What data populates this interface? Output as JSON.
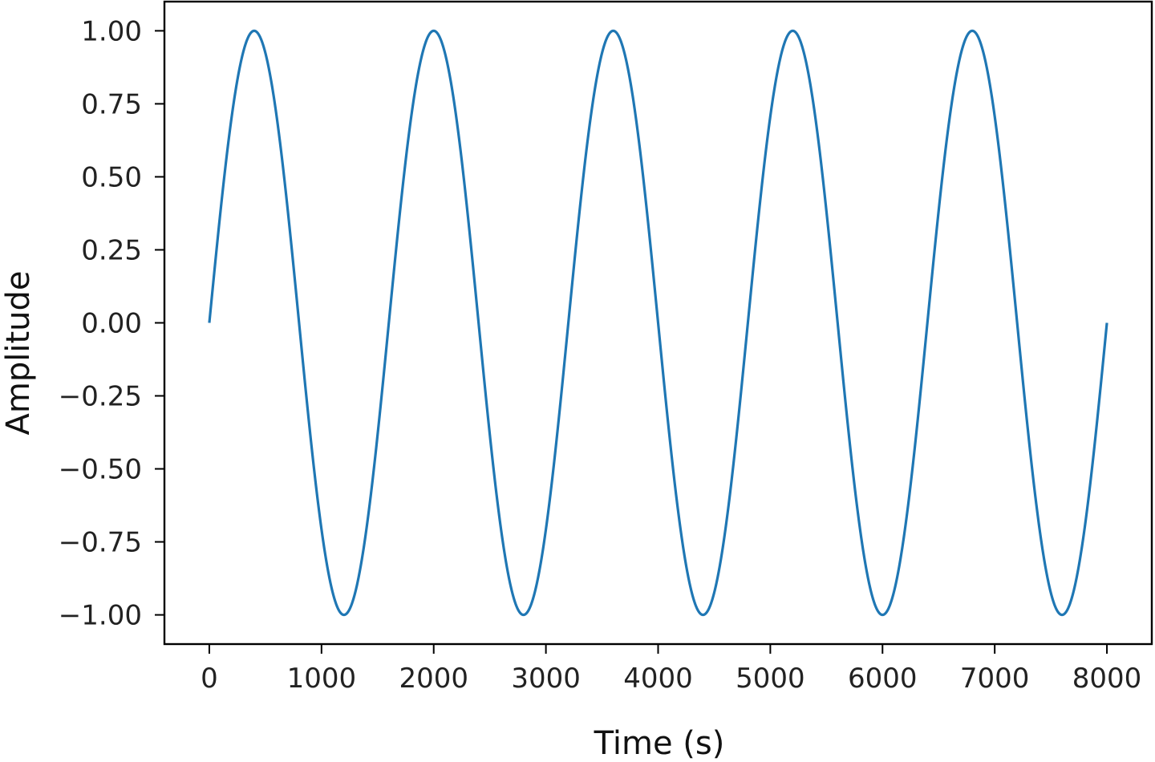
{
  "chart_data": {
    "type": "line",
    "title": "",
    "xlabel": "Time (s)",
    "ylabel": "Amplitude",
    "xlim": [
      -400,
      8400
    ],
    "ylim": [
      -1.1,
      1.1
    ],
    "x_ticks": [
      0,
      1000,
      2000,
      3000,
      4000,
      5000,
      6000,
      7000,
      8000
    ],
    "x_tick_labels": [
      "0",
      "1000",
      "2000",
      "3000",
      "4000",
      "5000",
      "6000",
      "7000",
      "8000"
    ],
    "y_ticks": [
      1.0,
      0.75,
      0.5,
      0.25,
      0.0,
      -0.25,
      -0.5,
      -0.75,
      -1.0
    ],
    "y_tick_labels": [
      "1.00",
      "0.75",
      "0.50",
      "0.25",
      "0.00",
      "−0.25",
      "−0.50",
      "−0.75",
      "−1.00"
    ],
    "grid": false,
    "legend": false,
    "series": [
      {
        "color": "#1f77b4",
        "function": "sine",
        "amplitude": 1.0,
        "period": 1600,
        "x_start": 0,
        "x_end": 8000,
        "x": [
          0,
          400,
          800,
          1200,
          1600,
          2000,
          2400,
          2800,
          3200,
          3600,
          4000,
          4400,
          4800,
          5200,
          5600,
          6000,
          6400,
          6800,
          7200,
          7600,
          8000
        ],
        "y": [
          0,
          1,
          0,
          -1,
          0,
          1,
          0,
          -1,
          0,
          1,
          0,
          -1,
          0,
          1,
          0,
          -1,
          0,
          1,
          0,
          -1,
          0
        ]
      }
    ]
  }
}
